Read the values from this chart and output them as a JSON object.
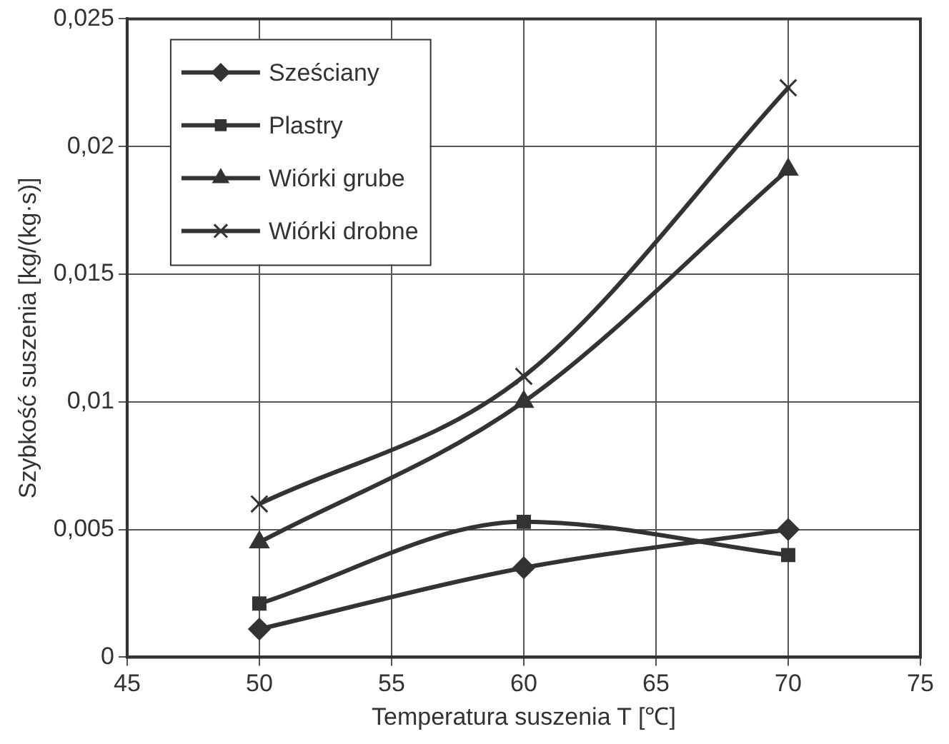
{
  "chart_data": {
    "type": "line",
    "xlabel": "Temperatura suszenia T [℃]",
    "ylabel": "Szybkość suszenia [kg/(kg·s)]",
    "x": [
      50,
      60,
      70
    ],
    "series": [
      {
        "name": "Sześciany",
        "color": "#333333",
        "marker": "diamond",
        "values": [
          0.0011,
          0.0035,
          0.005
        ]
      },
      {
        "name": "Plastry",
        "color": "#333333",
        "marker": "square",
        "values": [
          0.0021,
          0.0053,
          0.004
        ]
      },
      {
        "name": "Wiórki grube",
        "color": "#333333",
        "marker": "triangle",
        "values": [
          0.0045,
          0.01,
          0.0191
        ]
      },
      {
        "name": "Wiórki drobne",
        "color": "#333333",
        "marker": "cross",
        "values": [
          0.006,
          0.011,
          0.0223
        ]
      }
    ],
    "xlim": [
      45,
      75
    ],
    "xticks": [
      45,
      50,
      55,
      60,
      65,
      70,
      75
    ],
    "ylim": [
      0,
      0.025
    ],
    "yticks": [
      0,
      {
        "value": 0.005,
        "label": "0,005"
      },
      {
        "value": 0.01,
        "label": "0,01"
      },
      {
        "value": 0.015,
        "label": "0,015"
      },
      {
        "value": 0.02,
        "label": "0,02"
      },
      {
        "value": 0.025,
        "label": "0,025"
      }
    ],
    "grid": true,
    "legend": "top left",
    "line_style": "solid"
  }
}
